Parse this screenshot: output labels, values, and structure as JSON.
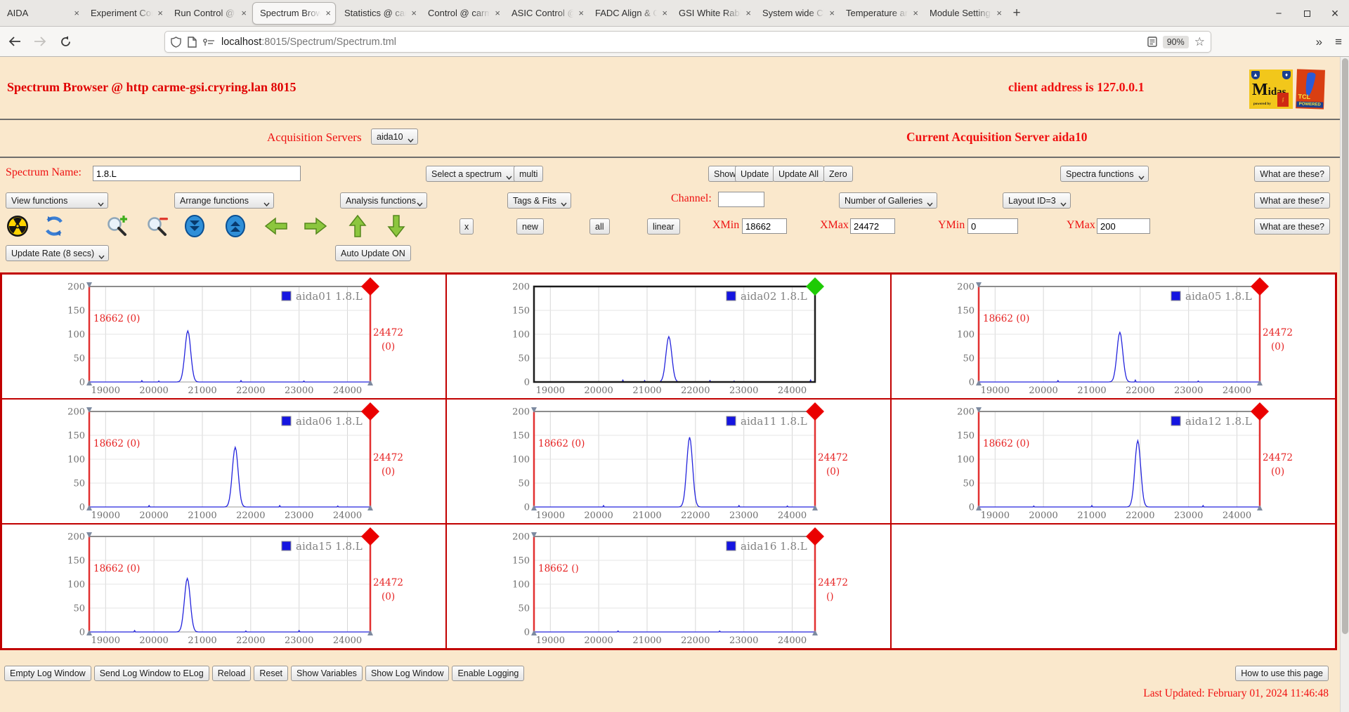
{
  "browser": {
    "tabs": [
      {
        "label": "AIDA",
        "active": false
      },
      {
        "label": "Experiment Contr",
        "active": false
      },
      {
        "label": "Run Control @ ca",
        "active": false
      },
      {
        "label": "Spectrum Browse",
        "active": true
      },
      {
        "label": "Statistics @ carm",
        "active": false
      },
      {
        "label": "Control @ carme",
        "active": false
      },
      {
        "label": "ASIC Control @ c",
        "active": false
      },
      {
        "label": "FADC Align & Co",
        "active": false
      },
      {
        "label": "GSI White Rabbit",
        "active": false
      },
      {
        "label": "System wide Che",
        "active": false
      },
      {
        "label": "Temperature and",
        "active": false
      },
      {
        "label": "Module Settings",
        "active": false
      }
    ],
    "tab_close_glyph": "×",
    "new_tab_label": "+",
    "window_controls": {
      "minimize": "−",
      "close": "×"
    },
    "url": {
      "host": "localhost",
      "rest": ":8015/Spectrum/Spectrum.tml"
    },
    "zoom_badge": "90%",
    "star_glyph": "☆",
    "overflow_glyph": "»",
    "menu_glyph": "≡"
  },
  "page": {
    "title": "Spectrum Browser @ http carme-gsi.cryring.lan 8015",
    "client_address": "client address is 127.0.0.1",
    "logos": {
      "midas_m": "M",
      "midas_rest": "idas",
      "midas_powered": "powered by",
      "tcl": "TCL",
      "tcl_powered": "POWERED"
    },
    "acquisition": {
      "label": "Acquisition Servers",
      "server_selected": "aida10",
      "current": "Current Acquisition Server aida10"
    },
    "spectrum_row": {
      "name_label": "Spectrum Name:",
      "name_value": "1.8.L",
      "select_spectrum": "Select a spectrum",
      "multi": "multi",
      "show": "Show",
      "update": "Update",
      "update_all": "Update All",
      "zero": "Zero",
      "spectra_functions": "Spectra functions",
      "what": "What are these?"
    },
    "functions_row": {
      "view": "View functions",
      "arrange": "Arrange functions",
      "analysis": "Analysis functions",
      "tags": "Tags & Fits",
      "channel_label": "Channel:",
      "channel_value": "",
      "galleries": "Number of Galleries",
      "layout": "Layout ID=3",
      "what": "What are these?"
    },
    "controls_row": {
      "icons": [
        "radiation-icon",
        "refresh-icon",
        "zoom-in-icon",
        "zoom-out-icon",
        "scroll-down-icon",
        "scroll-up-icon",
        "left-arrow-icon",
        "right-arrow-icon",
        "up-arrow-icon",
        "down-arrow-icon"
      ],
      "x_button": "x",
      "new": "new",
      "all": "all",
      "linear": "linear",
      "xmin_label": "XMin",
      "xmin_value": "18662",
      "xmax_label": "XMax",
      "xmax_value": "24472",
      "ymin_label": "YMin",
      "ymin_value": "0",
      "ymax_label": "YMax",
      "ymax_value": "200",
      "what": "What are these?"
    },
    "update_row": {
      "rate": "Update Rate (8 secs)",
      "auto": "Auto Update ON"
    },
    "footer": {
      "buttons": [
        "Empty Log Window",
        "Send Log Window to ELog",
        "Reload",
        "Reset",
        "Show Variables",
        "Show Log Window",
        "Enable Logging"
      ],
      "help": "How to use this page",
      "last_updated": "Last Updated: February 01, 2024 11:46:48"
    }
  },
  "chart_data": {
    "type": "line",
    "xlim": [
      18662,
      24472
    ],
    "ylim": [
      0,
      200
    ],
    "x_ticks": [
      19000,
      20000,
      21000,
      22000,
      23000,
      24000
    ],
    "y_ticks": [
      0,
      50,
      100,
      150,
      200
    ],
    "grid": {
      "rows": 3,
      "cols": 3
    },
    "line_color": "#2424dd",
    "marker_red": "#ea0000",
    "marker_green": "#1ecb04",
    "charts": [
      {
        "id": "aida01",
        "legend": "aida01 1.8.L",
        "peak_center": 20700,
        "peak_height": 107,
        "selected": false,
        "cursor_left": "18662 (0)",
        "cursor_right": [
          "24472",
          "(0)"
        ],
        "noise": [
          [
            19750,
            3
          ],
          [
            20100,
            2
          ],
          [
            21800,
            3
          ],
          [
            23100,
            2
          ]
        ]
      },
      {
        "id": "aida02",
        "legend": "aida02 1.8.L",
        "peak_center": 21450,
        "peak_height": 95,
        "selected": true,
        "cursor_left": null,
        "cursor_right": null,
        "noise": [
          [
            20500,
            4
          ],
          [
            20950,
            3
          ],
          [
            22300,
            3
          ],
          [
            22800,
            2
          ],
          [
            24380,
            4
          ]
        ]
      },
      {
        "id": "aida05",
        "legend": "aida05 1.8.L",
        "peak_center": 21580,
        "peak_height": 104,
        "selected": false,
        "cursor_left": "18662 (0)",
        "cursor_right": [
          "24472",
          "(0)"
        ],
        "noise": [
          [
            20300,
            3
          ],
          [
            21900,
            4
          ],
          [
            23200,
            2
          ]
        ]
      },
      {
        "id": "aida06",
        "legend": "aida06 1.8.L",
        "peak_center": 21680,
        "peak_height": 125,
        "selected": false,
        "cursor_left": "18662 (0)",
        "cursor_right": [
          "24472",
          "(0)"
        ],
        "noise": [
          [
            19900,
            3
          ],
          [
            22600,
            3
          ],
          [
            23800,
            2
          ]
        ]
      },
      {
        "id": "aida11",
        "legend": "aida11 1.8.L",
        "peak_center": 21880,
        "peak_height": 146,
        "selected": false,
        "cursor_left": "18662 (0)",
        "cursor_right": [
          "24472",
          "(0)"
        ],
        "noise": [
          [
            20100,
            3
          ],
          [
            22900,
            3
          ],
          [
            23900,
            2
          ]
        ]
      },
      {
        "id": "aida12",
        "legend": "aida12 1.8.L",
        "peak_center": 21950,
        "peak_height": 139,
        "selected": false,
        "cursor_left": "18662 (0)",
        "cursor_right": [
          "24472",
          "(0)"
        ],
        "noise": [
          [
            19800,
            2
          ],
          [
            21000,
            3
          ],
          [
            23300,
            3
          ]
        ]
      },
      {
        "id": "aida15",
        "legend": "aida15 1.8.L",
        "peak_center": 20690,
        "peak_height": 112,
        "selected": false,
        "cursor_left": "18662 (0)",
        "cursor_right": [
          "24472",
          "(0)"
        ],
        "noise": [
          [
            19600,
            3
          ],
          [
            21900,
            2
          ],
          [
            23000,
            3
          ]
        ]
      },
      {
        "id": "aida16",
        "legend": "aida16 1.8.L",
        "peak_center": null,
        "peak_height": 0,
        "selected": false,
        "cursor_left": "18662 ()",
        "cursor_right": [
          "24472",
          "()"
        ],
        "noise": [
          [
            20400,
            2
          ],
          [
            22500,
            2
          ]
        ]
      },
      null
    ]
  }
}
